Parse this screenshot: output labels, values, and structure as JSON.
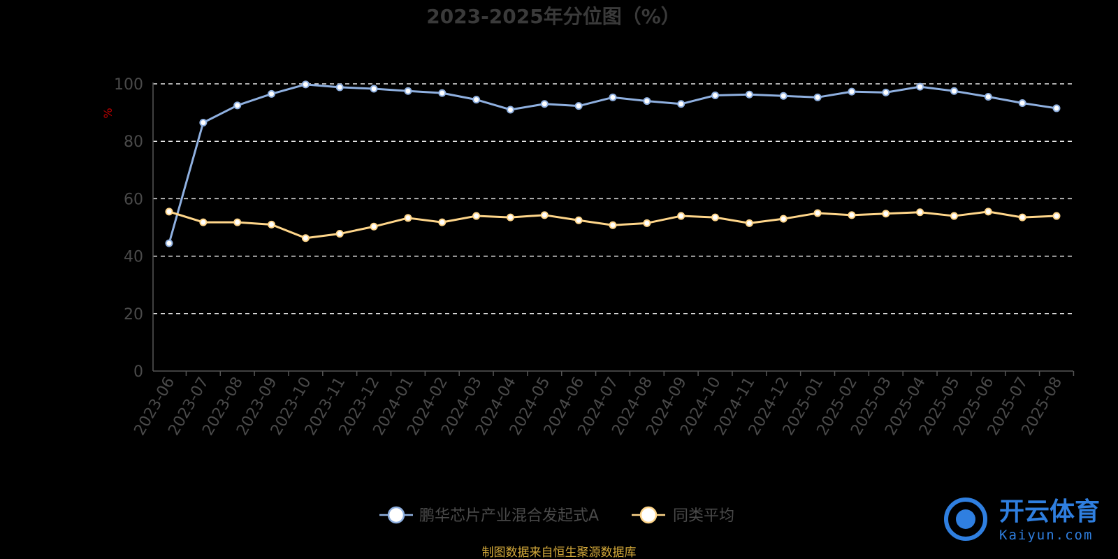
{
  "chart_data": {
    "type": "line",
    "title": "2023-2025年分位图（%）",
    "ylabel": "%",
    "xlabel": "",
    "ylim": [
      0,
      100
    ],
    "yticks": [
      0,
      20,
      40,
      60,
      80,
      100
    ],
    "grid": true,
    "legend_position": "bottom-center",
    "categories": [
      "2023-06",
      "2023-07",
      "2023-08",
      "2023-09",
      "2023-10",
      "2023-11",
      "2023-12",
      "2024-01",
      "2024-02",
      "2024-03",
      "2024-04",
      "2024-05",
      "2024-06",
      "2024-07",
      "2024-08",
      "2024-09",
      "2024-10",
      "2024-11",
      "2024-12",
      "2025-01",
      "2025-02",
      "2025-03",
      "2025-04",
      "2025-05",
      "2025-06",
      "2025-07",
      "2025-08"
    ],
    "series": [
      {
        "name": "鹏华芯片产业混合发起式A",
        "color": "#8fb0e0",
        "values": [
          44.5,
          86.5,
          92.5,
          96.5,
          99.8,
          98.8,
          98.3,
          97.5,
          96.8,
          94.5,
          91.0,
          93.0,
          92.3,
          95.3,
          94.0,
          93.0,
          96.0,
          96.3,
          95.8,
          95.3,
          97.3,
          97.0,
          99.0,
          97.5,
          95.5,
          93.3,
          91.5
        ]
      },
      {
        "name": "同类平均",
        "color": "#ffd68a",
        "values": [
          55.5,
          51.8,
          51.8,
          51.0,
          46.3,
          47.8,
          50.3,
          53.3,
          51.8,
          54.0,
          53.5,
          54.3,
          52.5,
          50.8,
          51.5,
          54.0,
          53.5,
          51.5,
          53.0,
          55.0,
          54.3,
          54.8,
          55.3,
          54.0,
          55.5,
          53.5,
          54.0
        ]
      }
    ]
  },
  "source_note": "制图数据来自恒生聚源数据库",
  "watermark": {
    "brand": "开云体育",
    "sub": "Kaiyun.com"
  }
}
